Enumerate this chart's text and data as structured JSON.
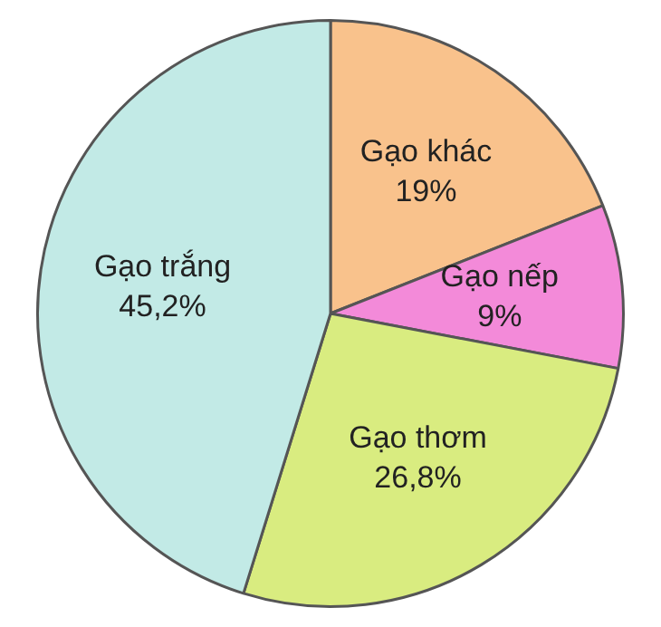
{
  "chart_data": {
    "type": "pie",
    "categories": [
      "Gạo khác",
      "Gạo nếp",
      "Gạo thơm",
      "Gạo trắng"
    ],
    "values": [
      19,
      9,
      26.8,
      45.2
    ],
    "colors": [
      "#f9c28c",
      "#f38ad9",
      "#d9ec80",
      "#c2eae6"
    ],
    "value_labels": [
      "19%",
      "9%",
      "26,8%",
      "45,2%"
    ],
    "legend": false
  }
}
